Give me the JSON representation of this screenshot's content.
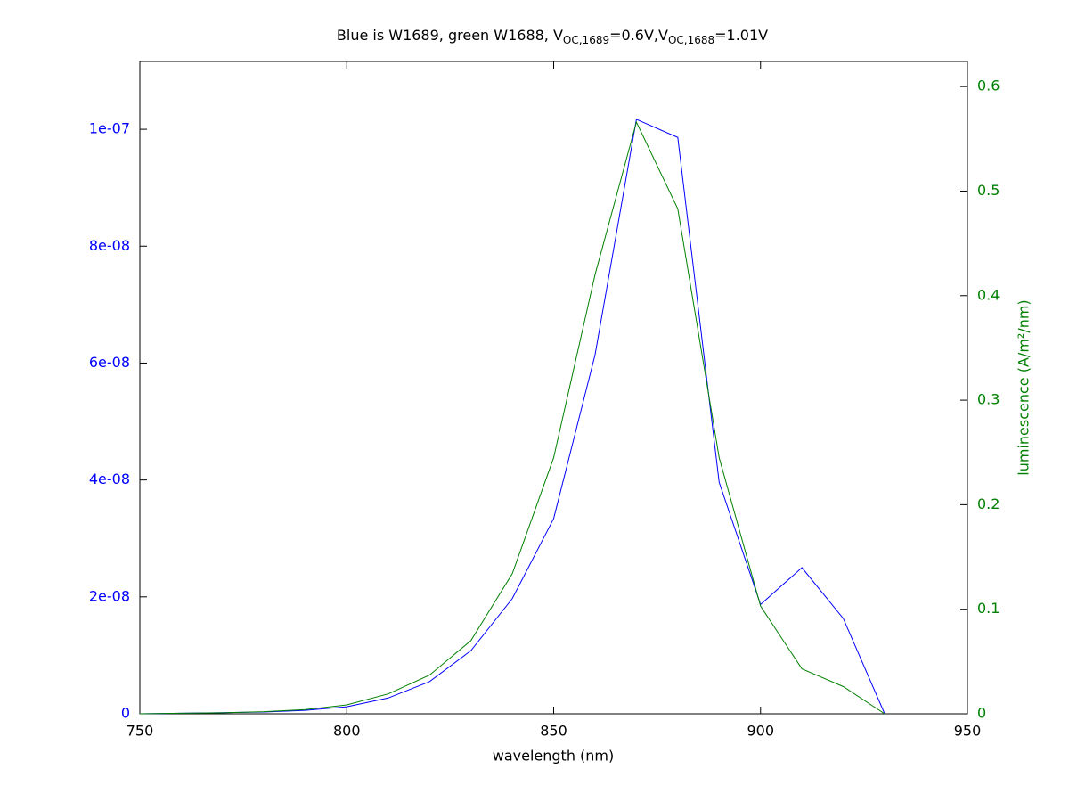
{
  "chart_data": {
    "type": "line",
    "title": [
      "Blue is W1689, green W1688, V",
      "OC,1689",
      "=0.6V,V",
      "OC,1688",
      "=1.01V"
    ],
    "xlabel": "wavelength (nm)",
    "y2label": "luminescence (A/m²/nm)",
    "x": [
      750,
      760,
      770,
      780,
      790,
      800,
      810,
      820,
      830,
      840,
      850,
      860,
      870,
      880,
      890,
      900,
      910,
      920,
      930
    ],
    "series": [
      {
        "color": "#0000ff",
        "axis": "y",
        "values": [
          0,
          1e-10,
          2e-10,
          3e-10,
          6e-10,
          1.2e-09,
          2.7e-09,
          5.5e-09,
          1.08e-08,
          1.97e-08,
          3.34e-08,
          6.14e-08,
          1.017e-07,
          9.86e-08,
          3.96e-08,
          1.87e-08,
          2.5e-08,
          1.63e-08,
          0
        ]
      },
      {
        "color": "#008000",
        "axis": "y2",
        "values": [
          0,
          0.0005,
          0.001,
          0.002,
          0.004,
          0.0085,
          0.019,
          0.037,
          0.07,
          0.134,
          0.245,
          0.42,
          0.566,
          0.483,
          0.245,
          0.103,
          0.043,
          0.026,
          0
        ]
      }
    ],
    "xlim": [
      750,
      950
    ],
    "xticks": [
      750,
      800,
      850,
      900,
      950
    ],
    "ylim": [
      0,
      1.116e-07
    ],
    "yticks": [
      0,
      {
        "value": 2e-08,
        "label": "2e-08"
      },
      {
        "value": 4e-08,
        "label": "4e-08"
      },
      {
        "value": 6e-08,
        "label": "6e-08"
      },
      {
        "value": 8e-08,
        "label": "8e-08"
      },
      {
        "value": 1e-07,
        "label": "1e-07"
      }
    ],
    "y2lim": [
      0,
      0.624
    ],
    "y2ticks": [
      0,
      0.1,
      0.2,
      0.3,
      0.4,
      0.5,
      0.6
    ],
    "ytick_color": "#0000ff",
    "y2tick_color": "#008000"
  }
}
